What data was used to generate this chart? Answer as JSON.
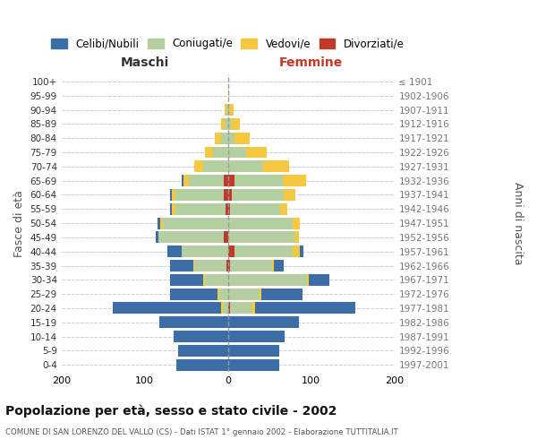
{
  "age_groups": [
    "0-4",
    "5-9",
    "10-14",
    "15-19",
    "20-24",
    "25-29",
    "30-34",
    "35-39",
    "40-44",
    "45-49",
    "50-54",
    "55-59",
    "60-64",
    "65-69",
    "70-74",
    "75-79",
    "80-84",
    "85-89",
    "90-94",
    "95-99",
    "100+"
  ],
  "birth_years": [
    "1997-2001",
    "1992-1996",
    "1987-1991",
    "1982-1986",
    "1977-1981",
    "1972-1976",
    "1967-1971",
    "1962-1966",
    "1957-1961",
    "1952-1956",
    "1947-1951",
    "1942-1946",
    "1937-1941",
    "1932-1936",
    "1927-1931",
    "1922-1926",
    "1917-1921",
    "1912-1916",
    "1907-1911",
    "1902-1906",
    "≤ 1901"
  ],
  "maschi": {
    "celibi": [
      62,
      60,
      65,
      82,
      130,
      58,
      40,
      28,
      18,
      4,
      3,
      3,
      3,
      3,
      0,
      0,
      0,
      0,
      0,
      0,
      0
    ],
    "coniugati": [
      0,
      0,
      0,
      0,
      5,
      10,
      28,
      38,
      55,
      78,
      78,
      60,
      58,
      42,
      30,
      18,
      8,
      4,
      2,
      0,
      0
    ],
    "vedovi": [
      0,
      0,
      0,
      0,
      3,
      2,
      2,
      2,
      0,
      0,
      3,
      4,
      4,
      6,
      10,
      10,
      8,
      4,
      2,
      0,
      0
    ],
    "divorziati": [
      0,
      0,
      0,
      0,
      0,
      0,
      0,
      2,
      0,
      5,
      0,
      3,
      5,
      5,
      0,
      0,
      0,
      0,
      0,
      0,
      0
    ]
  },
  "femmine": {
    "nubili": [
      62,
      62,
      68,
      85,
      120,
      50,
      25,
      12,
      5,
      0,
      0,
      0,
      0,
      0,
      0,
      0,
      0,
      0,
      0,
      0,
      0
    ],
    "coniugate": [
      0,
      0,
      0,
      0,
      25,
      38,
      95,
      50,
      70,
      80,
      78,
      60,
      62,
      58,
      42,
      22,
      8,
      4,
      2,
      0,
      0
    ],
    "vedove": [
      0,
      0,
      0,
      0,
      5,
      2,
      2,
      2,
      8,
      5,
      8,
      8,
      14,
      28,
      32,
      25,
      18,
      10,
      5,
      2,
      0
    ],
    "divorziate": [
      0,
      0,
      0,
      0,
      3,
      0,
      0,
      3,
      8,
      0,
      0,
      3,
      5,
      8,
      0,
      0,
      0,
      0,
      0,
      0,
      0
    ]
  },
  "colors": {
    "celibi": "#3a6ea5",
    "coniugati": "#b5cfa0",
    "vedovi": "#f5c842",
    "divorziati": "#c0392b"
  },
  "xlim": 200,
  "title": "Popolazione per età, sesso e stato civile - 2002",
  "subtitle": "COMUNE DI SAN LORENZO DEL VALLO (CS) - Dati ISTAT 1° gennaio 2002 - Elaborazione TUTTITALIA.IT",
  "ylabel_left": "Fasce di età",
  "ylabel_right": "Anni di nascita",
  "xlabel_left": "Maschi",
  "xlabel_right": "Femmine",
  "legend_labels": [
    "Celibi/Nubili",
    "Coniugati/e",
    "Vedovi/e",
    "Divorziati/e"
  ]
}
